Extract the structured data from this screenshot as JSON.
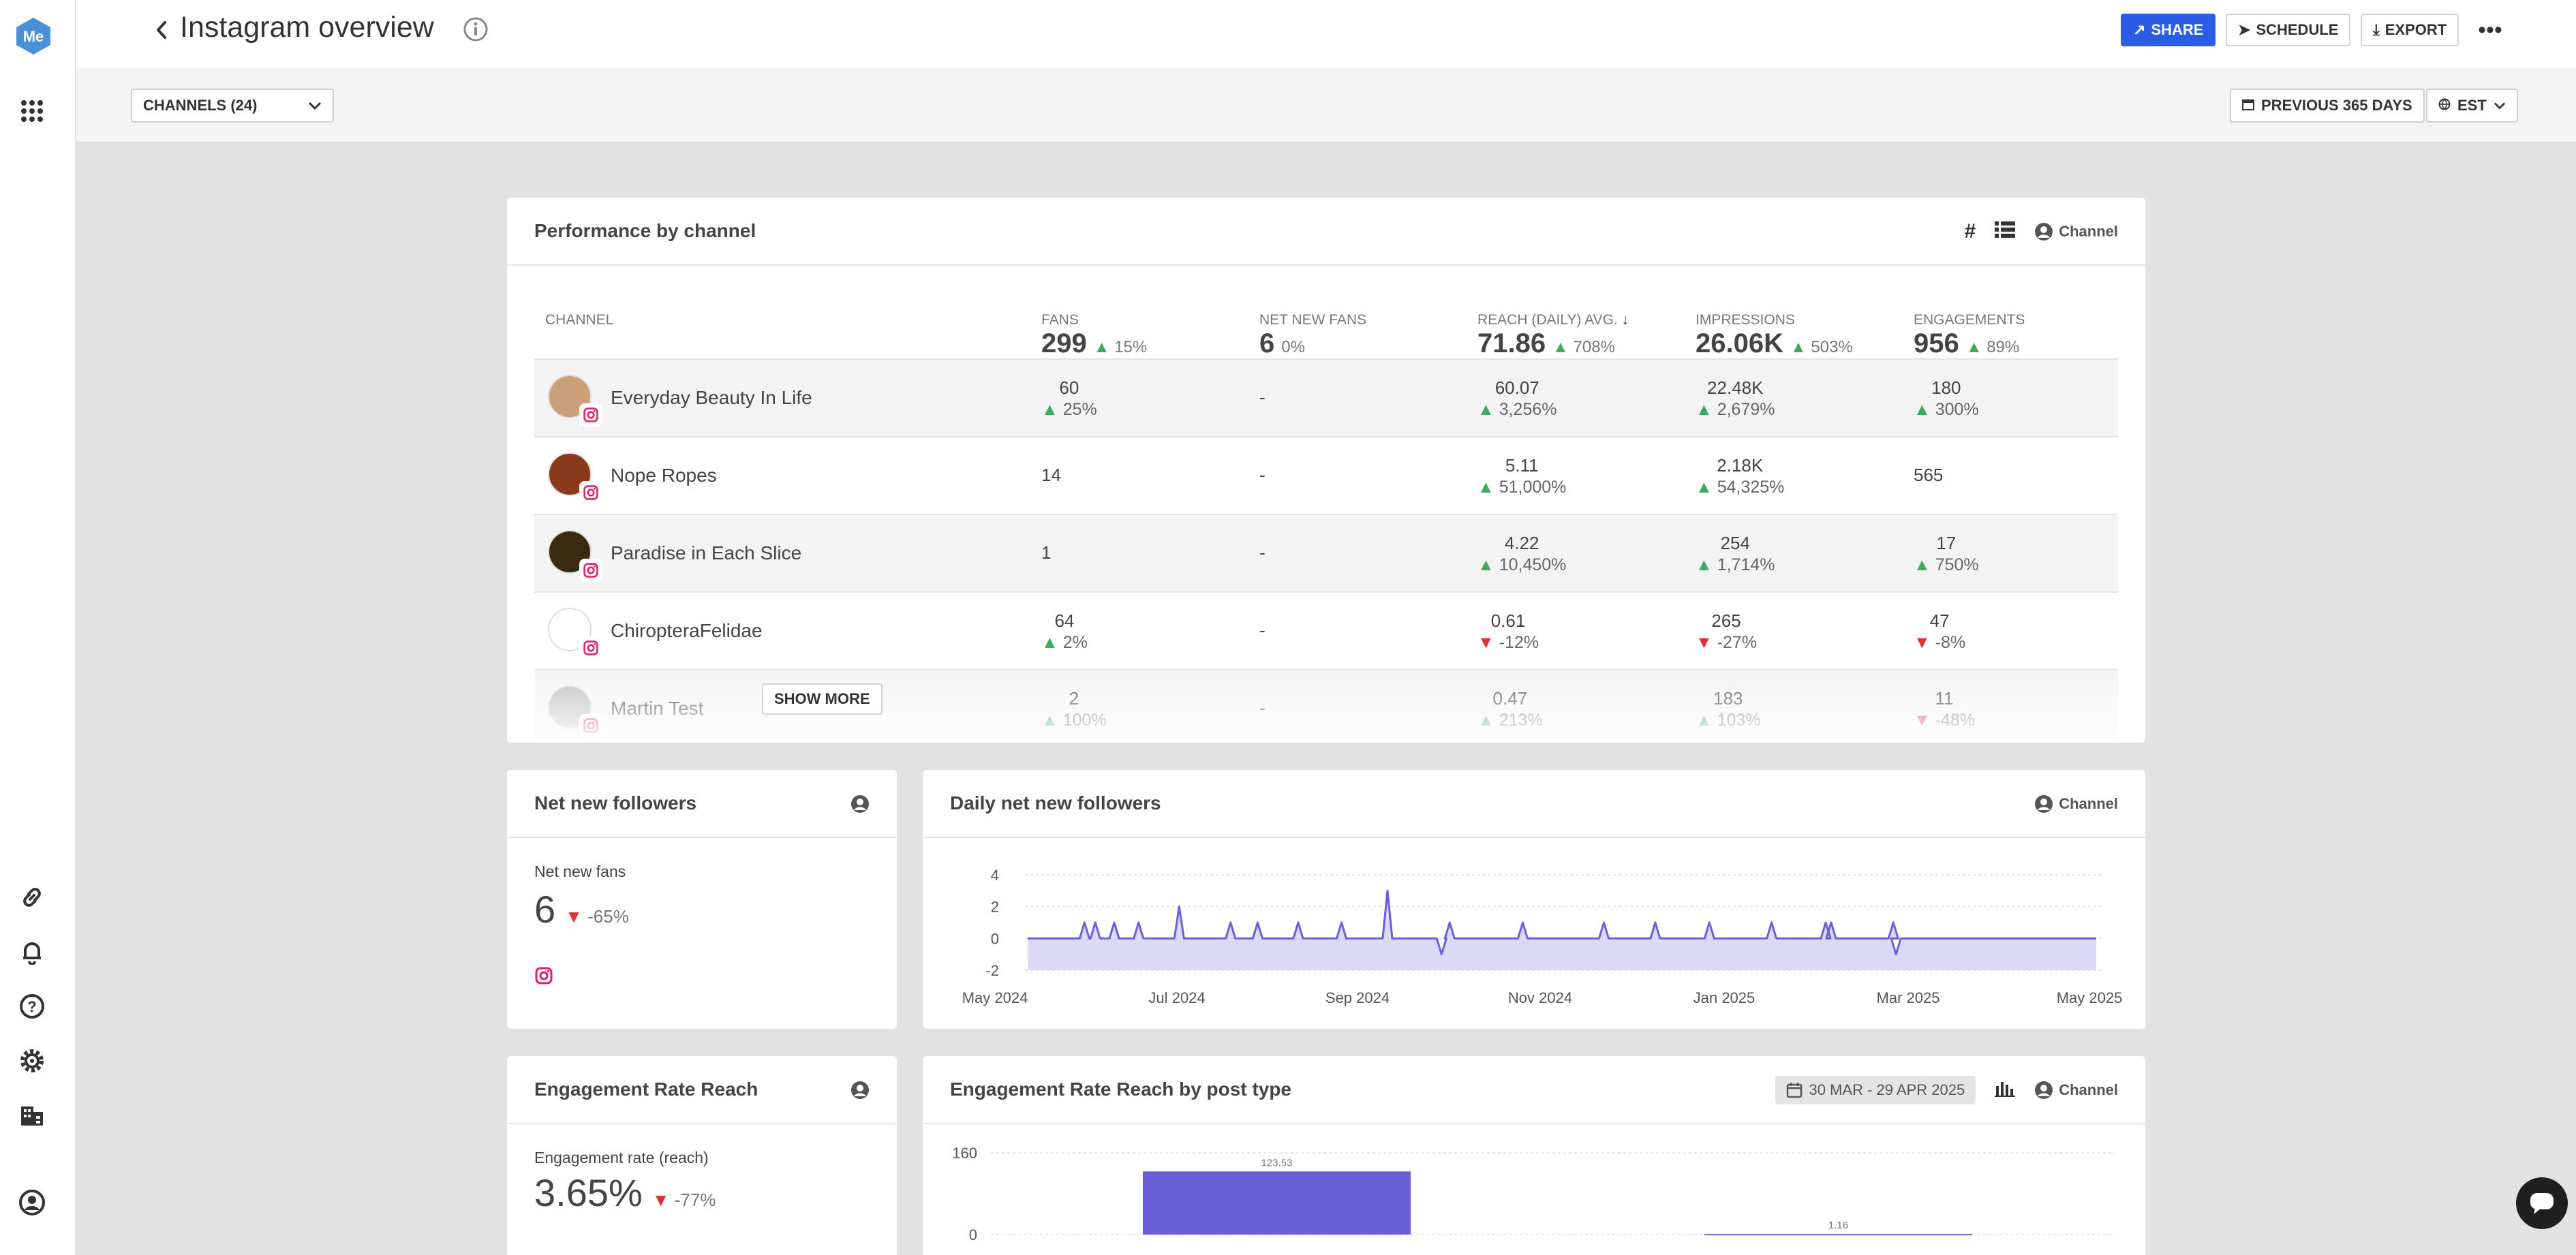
{
  "app": {
    "logo_text": "Me"
  },
  "header": {
    "title": "Instagram overview",
    "share_label": "SHARE",
    "schedule_label": "SCHEDULE",
    "export_label": "EXPORT"
  },
  "filters": {
    "channels_label": "CHANNELS (24)",
    "date_range_label": "PREVIOUS 365 DAYS",
    "timezone_label": "EST"
  },
  "performance": {
    "title": "Performance by channel",
    "hash_label": "#",
    "channel_filter_label": "Channel",
    "columns": [
      {
        "label": "CHANNEL",
        "total": "",
        "delta": ""
      },
      {
        "label": "FANS",
        "total": "299",
        "delta": "15%",
        "dir": "up"
      },
      {
        "label": "NET NEW FANS",
        "total": "6",
        "delta": "0%",
        "dir": "none"
      },
      {
        "label": "REACH (DAILY) AVG.",
        "total": "71.86",
        "delta": "708%",
        "dir": "up"
      },
      {
        "label": "IMPRESSIONS",
        "total": "26.06K",
        "delta": "503%",
        "dir": "up"
      },
      {
        "label": "ENGAGEMENTS",
        "total": "956",
        "delta": "89%",
        "dir": "up"
      }
    ],
    "rows": [
      {
        "name": "Everyday Beauty In Life",
        "fans": "60",
        "fans_d": "25%",
        "fans_dir": "up",
        "net": "-",
        "reach": "60.07",
        "reach_d": "3,256%",
        "reach_dir": "up",
        "impr": "22.48K",
        "impr_d": "2,679%",
        "impr_dir": "up",
        "eng": "180",
        "eng_d": "300%",
        "eng_dir": "up",
        "avatar_color": "#c9a07a"
      },
      {
        "name": "Nope Ropes",
        "fans": "14",
        "fans_d": "",
        "fans_dir": "",
        "net": "-",
        "reach": "5.11",
        "reach_d": "51,000%",
        "reach_dir": "up",
        "impr": "2.18K",
        "impr_d": "54,325%",
        "impr_dir": "up",
        "eng": "565",
        "eng_d": "",
        "eng_dir": "",
        "avatar_color": "#8a3b1e"
      },
      {
        "name": "Paradise in Each Slice",
        "fans": "1",
        "fans_d": "",
        "fans_dir": "",
        "net": "-",
        "reach": "4.22",
        "reach_d": "10,450%",
        "reach_dir": "up",
        "impr": "254",
        "impr_d": "1,714%",
        "impr_dir": "up",
        "eng": "17",
        "eng_d": "750%",
        "eng_dir": "up",
        "avatar_color": "#3a2a10"
      },
      {
        "name": "ChiropteraFelidae",
        "fans": "64",
        "fans_d": "2%",
        "fans_dir": "up",
        "net": "-",
        "reach": "0.61",
        "reach_d": "-12%",
        "reach_dir": "down",
        "impr": "265",
        "impr_d": "-27%",
        "impr_dir": "down",
        "eng": "47",
        "eng_d": "-8%",
        "eng_dir": "down",
        "avatar_color": "#ffffff"
      },
      {
        "name": "Martin Test",
        "fans": "2",
        "fans_d": "100%",
        "fans_dir": "up",
        "net": "-",
        "reach": "0.47",
        "reach_d": "213%",
        "reach_dir": "up",
        "impr": "183",
        "impr_d": "103%",
        "impr_dir": "up",
        "eng": "11",
        "eng_d": "-48%",
        "eng_dir": "down",
        "avatar_color": "#bcbcbc"
      }
    ],
    "show_more_label": "SHOW MORE"
  },
  "net_new_followers": {
    "title": "Net new followers",
    "metric_label": "Net new fans",
    "value": "6",
    "delta": "-65%"
  },
  "daily_net": {
    "title": "Daily net new followers",
    "channel_filter_label": "Channel"
  },
  "engagement_rate": {
    "title": "Engagement Rate Reach",
    "metric_label": "Engagement rate (reach)",
    "value": "3.65%",
    "delta": "-77%"
  },
  "engagement_by_type": {
    "title": "Engagement Rate Reach by post type",
    "date_label": "30 MAR - 29 APR 2025",
    "channel_filter_label": "Channel"
  },
  "colors": {
    "accent": "#2b5ce6",
    "chart": "#6a5fd8",
    "up": "#3cab5f",
    "down": "#e0303a",
    "instagram": "#d6246e"
  },
  "chart_data": [
    {
      "type": "area",
      "x_ticks": [
        "May 2024",
        "Jul 2024",
        "Sep 2024",
        "Nov 2024",
        "Jan 2025",
        "Mar 2025",
        "May 2025"
      ],
      "y_ticks": [
        4,
        2,
        0,
        -2
      ],
      "ylim": [
        -2,
        4
      ],
      "series": [
        {
          "values": [
            {
              "x": "2024-05-22",
              "y": 1
            },
            {
              "x": "2024-05-26",
              "y": 1
            },
            {
              "x": "2024-06-02",
              "y": 1
            },
            {
              "x": "2024-06-11",
              "y": 1
            },
            {
              "x": "2024-06-26",
              "y": 2
            },
            {
              "x": "2024-07-15",
              "y": 1
            },
            {
              "x": "2024-07-25",
              "y": 1
            },
            {
              "x": "2024-08-09",
              "y": 1
            },
            {
              "x": "2024-08-25",
              "y": 1
            },
            {
              "x": "2024-09-11",
              "y": 3
            },
            {
              "x": "2024-10-01",
              "y": -1
            },
            {
              "x": "2024-10-04",
              "y": 1
            },
            {
              "x": "2024-10-31",
              "y": 1
            },
            {
              "x": "2024-11-30",
              "y": 1
            },
            {
              "x": "2024-12-19",
              "y": 1
            },
            {
              "x": "2025-01-08",
              "y": 1
            },
            {
              "x": "2025-01-31",
              "y": 1
            },
            {
              "x": "2025-02-20",
              "y": 1
            },
            {
              "x": "2025-02-22",
              "y": 1
            },
            {
              "x": "2025-03-17",
              "y": 1
            },
            {
              "x": "2025-03-18",
              "y": -1
            }
          ]
        }
      ],
      "grid": true
    },
    {
      "type": "bar",
      "categories": [
        "",
        ""
      ],
      "values": [
        123.53,
        1.16
      ],
      "y_ticks": [
        160,
        0
      ],
      "ylim": [
        0,
        160
      ],
      "grid": true
    }
  ]
}
